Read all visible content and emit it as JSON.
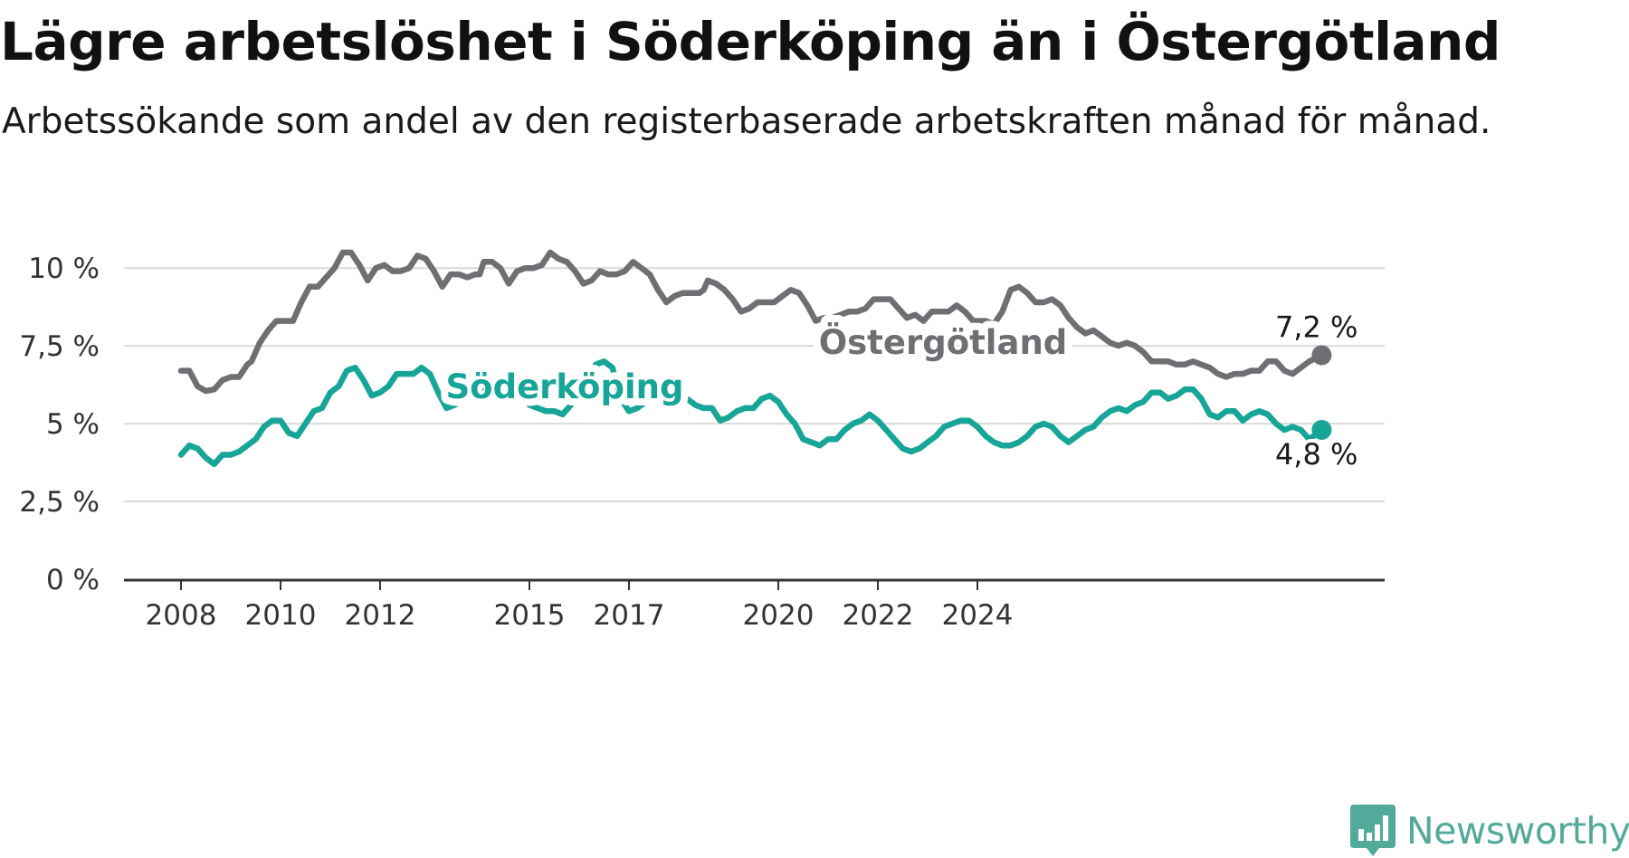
{
  "chart_data": {
    "type": "line",
    "title": "Lägre arbetslöshet i Söderköping än i Östergötland",
    "subtitle": "Arbetssökande som andel av den registerbaserade arbetskraften månad för månad.",
    "x_ticks": [
      "2008",
      "2010",
      "2012",
      "2015",
      "2017",
      "2020",
      "2022",
      "2024"
    ],
    "y_ticks": [
      "0 %",
      "2,5 %",
      "5 %",
      "7,5 %",
      "10 %"
    ],
    "ylim": [
      0,
      10.5
    ],
    "grid": true,
    "series": [
      {
        "name": "Östergötland",
        "color": "#6e6e73",
        "end_label": "7,2 %",
        "points": [
          [
            "2008-01",
            6.7
          ],
          [
            "2008-03",
            6.7
          ],
          [
            "2008-05",
            6.2
          ],
          [
            "2008-07",
            6.05
          ],
          [
            "2008-09",
            6.1
          ],
          [
            "2008-11",
            6.4
          ],
          [
            "2009-01",
            6.5
          ],
          [
            "2009-03",
            6.5
          ],
          [
            "2009-05",
            6.9
          ],
          [
            "2009-06",
            7.0
          ],
          [
            "2009-08",
            7.6
          ],
          [
            "2009-10",
            8.0
          ],
          [
            "2009-12",
            8.3
          ],
          [
            "2010-02",
            8.3
          ],
          [
            "2010-04",
            8.3
          ],
          [
            "2010-06",
            8.9
          ],
          [
            "2010-08",
            9.4
          ],
          [
            "2010-10",
            9.4
          ],
          [
            "2010-12",
            9.7
          ],
          [
            "2011-02",
            10.0
          ],
          [
            "2011-04",
            10.5
          ],
          [
            "2011-06",
            10.5
          ],
          [
            "2011-08",
            10.1
          ],
          [
            "2011-10",
            9.6
          ],
          [
            "2011-12",
            10.0
          ],
          [
            "2012-02",
            10.1
          ],
          [
            "2012-04",
            9.9
          ],
          [
            "2012-06",
            9.9
          ],
          [
            "2012-08",
            10.0
          ],
          [
            "2012-10",
            10.4
          ],
          [
            "2012-12",
            10.3
          ],
          [
            "2013-02",
            9.9
          ],
          [
            "2013-04",
            9.4
          ],
          [
            "2013-06",
            9.8
          ],
          [
            "2013-08",
            9.8
          ],
          [
            "2013-10",
            9.7
          ],
          [
            "2013-12",
            9.8
          ],
          [
            "2014-01",
            9.8
          ],
          [
            "2014-02",
            10.2
          ],
          [
            "2014-04",
            10.2
          ],
          [
            "2014-06",
            10.0
          ],
          [
            "2014-08",
            9.5
          ],
          [
            "2014-10",
            9.9
          ],
          [
            "2014-12",
            10.0
          ],
          [
            "2015-02",
            10.0
          ],
          [
            "2015-04",
            10.1
          ],
          [
            "2015-06",
            10.5
          ],
          [
            "2015-08",
            10.3
          ],
          [
            "2015-10",
            10.2
          ],
          [
            "2015-12",
            9.9
          ],
          [
            "2016-02",
            9.5
          ],
          [
            "2016-04",
            9.6
          ],
          [
            "2016-06",
            9.9
          ],
          [
            "2016-08",
            9.8
          ],
          [
            "2016-10",
            9.8
          ],
          [
            "2016-12",
            9.9
          ],
          [
            "2017-02",
            10.2
          ],
          [
            "2017-04",
            10.0
          ],
          [
            "2017-06",
            9.8
          ],
          [
            "2017-08",
            9.3
          ],
          [
            "2017-10",
            8.9
          ],
          [
            "2017-12",
            9.1
          ],
          [
            "2018-02",
            9.2
          ],
          [
            "2018-04",
            9.2
          ],
          [
            "2018-06",
            9.2
          ],
          [
            "2018-07",
            9.3
          ],
          [
            "2018-08",
            9.6
          ],
          [
            "2018-10",
            9.5
          ],
          [
            "2018-12",
            9.3
          ],
          [
            "2019-02",
            9.0
          ],
          [
            "2019-04",
            8.6
          ],
          [
            "2019-06",
            8.7
          ],
          [
            "2019-08",
            8.9
          ],
          [
            "2019-10",
            8.9
          ],
          [
            "2019-12",
            8.9
          ],
          [
            "2020-02",
            9.1
          ],
          [
            "2020-04",
            9.3
          ],
          [
            "2020-06",
            9.2
          ],
          [
            "2020-08",
            8.8
          ],
          [
            "2020-10",
            8.3
          ],
          [
            "2020-12",
            8.4
          ],
          [
            "2021-02",
            8.4
          ],
          [
            "2021-04",
            8.5
          ],
          [
            "2021-06",
            8.6
          ],
          [
            "2021-08",
            8.6
          ],
          [
            "2021-10",
            8.7
          ],
          [
            "2021-12",
            9.0
          ],
          [
            "2022-02",
            9.0
          ],
          [
            "2022-04",
            9.0
          ],
          [
            "2022-06",
            8.7
          ],
          [
            "2022-08",
            8.4
          ],
          [
            "2022-10",
            8.5
          ],
          [
            "2022-12",
            8.3
          ],
          [
            "2023-02",
            8.6
          ],
          [
            "2023-04",
            8.6
          ],
          [
            "2023-06",
            8.6
          ],
          [
            "2023-08",
            8.8
          ],
          [
            "2023-10",
            8.6
          ],
          [
            "2023-12",
            8.3
          ],
          [
            "2024-03",
            8.3
          ],
          [
            "2024-05",
            8.2
          ],
          [
            "2024-07",
            8.6
          ],
          [
            "2024-09",
            9.3
          ],
          [
            "2024-11",
            9.4
          ],
          [
            "2025-01",
            9.2
          ],
          [
            "2025-03",
            8.9
          ],
          [
            "2025-05",
            8.9
          ],
          [
            "2025-07",
            9.0
          ],
          [
            "2025-09",
            8.8
          ],
          [
            "2025-11",
            8.4
          ],
          [
            "2026-01",
            8.1
          ],
          [
            "2026-03",
            7.9
          ],
          [
            "2026-05",
            8.0
          ],
          [
            "2026-07",
            7.8
          ],
          [
            "2026-09",
            7.6
          ],
          [
            "2026-11",
            7.5
          ],
          [
            "2027-01",
            7.6
          ],
          [
            "2027-03",
            7.5
          ],
          [
            "2027-05",
            7.3
          ],
          [
            "2027-07",
            7.0
          ],
          [
            "2027-09",
            7.0
          ],
          [
            "2027-11",
            7.0
          ],
          [
            "2028-01",
            6.9
          ],
          [
            "2028-03",
            6.9
          ],
          [
            "2028-05",
            7.0
          ],
          [
            "2028-07",
            6.9
          ],
          [
            "2028-09",
            6.8
          ],
          [
            "2028-11",
            6.6
          ],
          [
            "2029-01",
            6.5
          ],
          [
            "2029-03",
            6.6
          ],
          [
            "2029-05",
            6.6
          ],
          [
            "2029-07",
            6.7
          ],
          [
            "2029-09",
            6.7
          ],
          [
            "2029-11",
            7.0
          ],
          [
            "2030-01",
            7.0
          ],
          [
            "2030-03",
            6.7
          ],
          [
            "2030-05",
            6.6
          ],
          [
            "2030-07",
            6.8
          ],
          [
            "2030-09",
            7.0
          ],
          [
            "2030-12",
            7.2
          ]
        ]
      },
      {
        "name": "Söderköping",
        "color": "#17a598",
        "end_label": "4,8 %",
        "points": [
          [
            "2008-01",
            4.0
          ],
          [
            "2008-03",
            4.3
          ],
          [
            "2008-05",
            4.2
          ],
          [
            "2008-07",
            3.9
          ],
          [
            "2008-09",
            3.7
          ],
          [
            "2008-11",
            4.0
          ],
          [
            "2009-01",
            4.0
          ],
          [
            "2009-03",
            4.1
          ],
          [
            "2009-05",
            4.3
          ],
          [
            "2009-07",
            4.5
          ],
          [
            "2009-09",
            4.9
          ],
          [
            "2009-11",
            5.1
          ],
          [
            "2010-01",
            5.1
          ],
          [
            "2010-03",
            4.7
          ],
          [
            "2010-05",
            4.6
          ],
          [
            "2010-07",
            5.0
          ],
          [
            "2010-09",
            5.4
          ],
          [
            "2010-11",
            5.5
          ],
          [
            "2011-01",
            6.0
          ],
          [
            "2011-03",
            6.2
          ],
          [
            "2011-05",
            6.7
          ],
          [
            "2011-07",
            6.8
          ],
          [
            "2011-09",
            6.4
          ],
          [
            "2011-11",
            5.9
          ],
          [
            "2012-01",
            6.0
          ],
          [
            "2012-03",
            6.2
          ],
          [
            "2012-05",
            6.6
          ],
          [
            "2012-07",
            6.6
          ],
          [
            "2012-09",
            6.6
          ],
          [
            "2012-11",
            6.8
          ],
          [
            "2013-01",
            6.6
          ],
          [
            "2013-03",
            6.0
          ],
          [
            "2013-05",
            5.5
          ],
          [
            "2013-07",
            5.6
          ],
          [
            "2013-09",
            5.8
          ],
          [
            "2013-11",
            5.8
          ],
          [
            "2014-01",
            5.8
          ],
          [
            "2014-03",
            6.2
          ],
          [
            "2014-05",
            6.3
          ],
          [
            "2014-07",
            6.5
          ],
          [
            "2014-09",
            6.5
          ],
          [
            "2014-11",
            6.1
          ],
          [
            "2015-01",
            5.6
          ],
          [
            "2015-03",
            5.5
          ],
          [
            "2015-05",
            5.4
          ],
          [
            "2015-07",
            5.4
          ],
          [
            "2015-09",
            5.3
          ],
          [
            "2015-11",
            5.6
          ],
          [
            "2016-01",
            6.0
          ],
          [
            "2016-03",
            6.4
          ],
          [
            "2016-05",
            6.9
          ],
          [
            "2016-07",
            7.0
          ],
          [
            "2016-09",
            6.8
          ],
          [
            "2016-11",
            5.8
          ],
          [
            "2017-01",
            5.4
          ],
          [
            "2017-03",
            5.5
          ],
          [
            "2017-05",
            5.7
          ],
          [
            "2017-07",
            5.9
          ],
          [
            "2017-09",
            5.5
          ],
          [
            "2017-11",
            5.5
          ],
          [
            "2018-01",
            5.6
          ],
          [
            "2018-03",
            5.8
          ],
          [
            "2018-05",
            5.6
          ],
          [
            "2018-07",
            5.5
          ],
          [
            "2018-09",
            5.5
          ],
          [
            "2018-11",
            5.1
          ],
          [
            "2019-01",
            5.2
          ],
          [
            "2019-03",
            5.4
          ],
          [
            "2019-05",
            5.5
          ],
          [
            "2019-07",
            5.5
          ],
          [
            "2019-09",
            5.8
          ],
          [
            "2019-11",
            5.9
          ],
          [
            "2020-01",
            5.7
          ],
          [
            "2020-03",
            5.3
          ],
          [
            "2020-05",
            5.0
          ],
          [
            "2020-07",
            4.5
          ],
          [
            "2020-09",
            4.4
          ],
          [
            "2020-11",
            4.3
          ],
          [
            "2021-01",
            4.5
          ],
          [
            "2021-03",
            4.5
          ],
          [
            "2021-05",
            4.8
          ],
          [
            "2021-07",
            5.0
          ],
          [
            "2021-09",
            5.1
          ],
          [
            "2021-11",
            5.3
          ],
          [
            "2022-01",
            5.1
          ],
          [
            "2022-03",
            4.8
          ],
          [
            "2022-05",
            4.5
          ],
          [
            "2022-07",
            4.2
          ],
          [
            "2022-09",
            4.1
          ],
          [
            "2022-11",
            4.2
          ],
          [
            "2023-01",
            4.4
          ],
          [
            "2023-03",
            4.6
          ],
          [
            "2023-05",
            4.9
          ],
          [
            "2023-07",
            5.0
          ],
          [
            "2023-09",
            5.1
          ],
          [
            "2023-11",
            5.1
          ],
          [
            "2024-01",
            4.9
          ],
          [
            "2024-03",
            4.6
          ],
          [
            "2024-05",
            4.4
          ],
          [
            "2024-07",
            4.3
          ],
          [
            "2024-09",
            4.3
          ],
          [
            "2024-11",
            4.4
          ],
          [
            "2025-01",
            4.6
          ],
          [
            "2025-03",
            4.9
          ],
          [
            "2025-05",
            5.0
          ],
          [
            "2025-07",
            4.9
          ],
          [
            "2025-09",
            4.6
          ],
          [
            "2025-11",
            4.4
          ],
          [
            "2026-01",
            4.6
          ],
          [
            "2026-03",
            4.8
          ],
          [
            "2026-05",
            4.9
          ],
          [
            "2026-07",
            5.2
          ],
          [
            "2026-09",
            5.4
          ],
          [
            "2026-11",
            5.5
          ],
          [
            "2027-01",
            5.4
          ],
          [
            "2027-03",
            5.6
          ],
          [
            "2027-05",
            5.7
          ],
          [
            "2027-07",
            6.0
          ],
          [
            "2027-09",
            6.0
          ],
          [
            "2027-11",
            5.8
          ],
          [
            "2028-01",
            5.9
          ],
          [
            "2028-03",
            6.1
          ],
          [
            "2028-05",
            6.1
          ],
          [
            "2028-07",
            5.8
          ],
          [
            "2028-09",
            5.3
          ],
          [
            "2028-11",
            5.2
          ],
          [
            "2029-01",
            5.4
          ],
          [
            "2029-03",
            5.4
          ],
          [
            "2029-05",
            5.1
          ],
          [
            "2029-07",
            5.3
          ],
          [
            "2029-09",
            5.4
          ],
          [
            "2029-11",
            5.3
          ],
          [
            "2030-01",
            5.0
          ],
          [
            "2030-03",
            4.8
          ],
          [
            "2030-05",
            4.9
          ],
          [
            "2030-07",
            4.8
          ],
          [
            "2030-09",
            4.5
          ],
          [
            "2030-12",
            4.8
          ]
        ]
      }
    ]
  },
  "brand": {
    "name": "Newsworthy",
    "icon": "newsworthy-logo-icon",
    "color": "#52aa9a"
  }
}
